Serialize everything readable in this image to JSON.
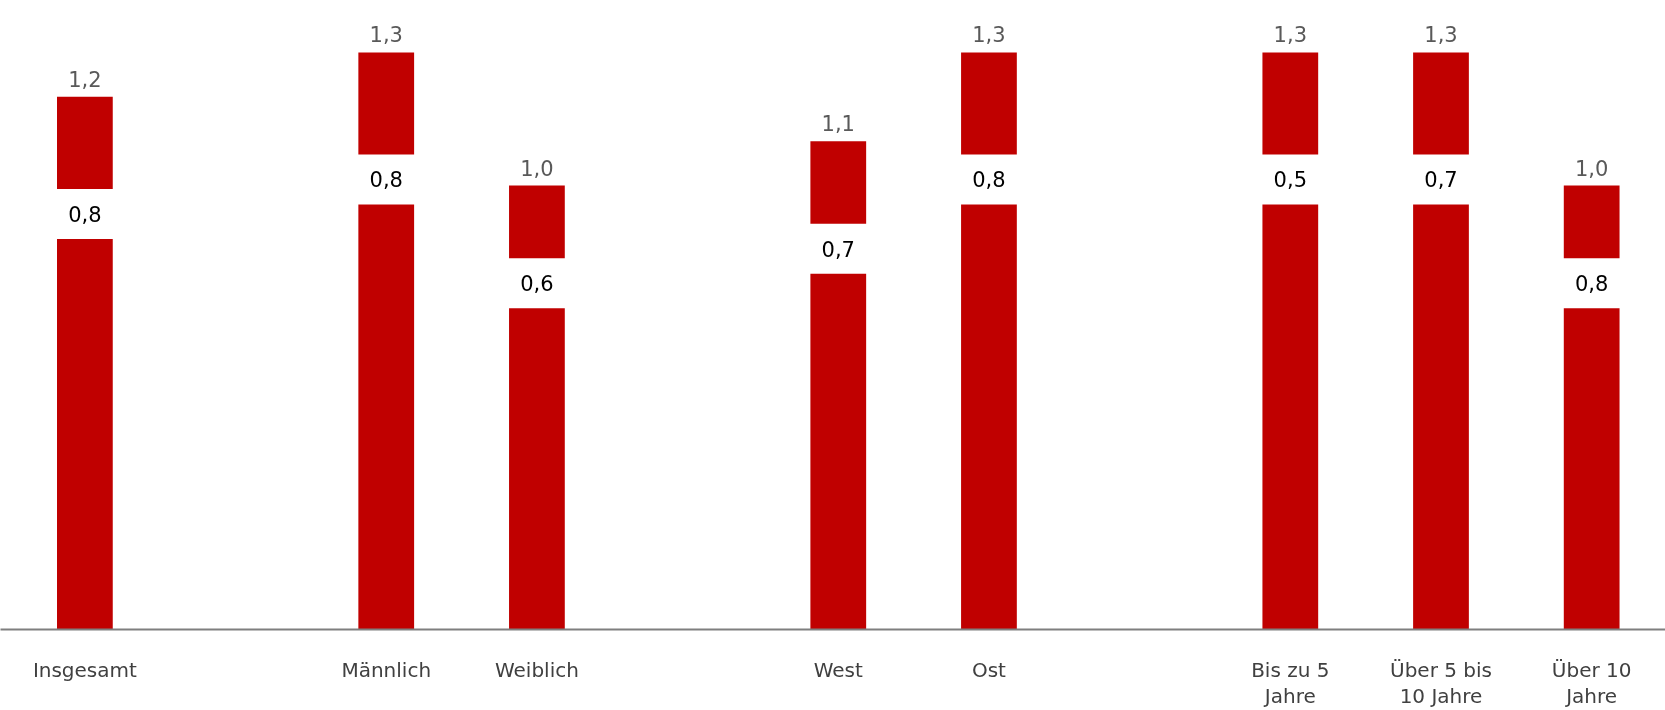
{
  "chart_data": {
    "type": "bar",
    "categories": [
      "Insgesamt",
      null,
      "Männlich",
      "Weiblich",
      null,
      "West",
      "Ost",
      null,
      "Bis zu 5\nJahre",
      "Über 5 bis\n10 Jahre",
      "Über 10\nJahre"
    ],
    "values": [
      1.2,
      null,
      1.3,
      1.0,
      null,
      1.1,
      1.3,
      null,
      1.3,
      1.3,
      1.0
    ],
    "value_labels": [
      "1,2",
      null,
      "1,3",
      "1,0",
      null,
      "1,1",
      "1,3",
      null,
      "1,3",
      "1,3",
      "1,0"
    ],
    "color": "#c00000",
    "tick_labels": "x",
    "annotations": [
      "0,8",
      "0,8",
      "0,6",
      "0,7",
      "0,8",
      "0,5",
      "0,7",
      "0,8"
    ]
  }
}
